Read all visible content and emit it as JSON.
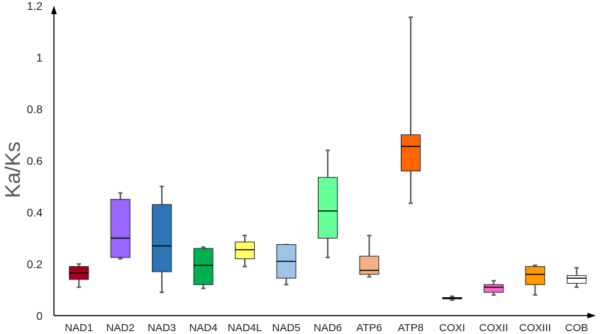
{
  "chart_data": {
    "type": "boxplot",
    "ylabel": "Ka/Ks",
    "ylim": [
      0,
      1.2
    ],
    "yticks": [
      0,
      0.2,
      0.4,
      0.6,
      0.8,
      1,
      1.2
    ],
    "ytick_labels": [
      "0",
      "0.2",
      "0.4",
      "0.6",
      "0.8",
      "1",
      "1.2"
    ],
    "grid": false,
    "categories": [
      "NAD1",
      "NAD2",
      "NAD3",
      "NAD4",
      "NAD4L",
      "NAD5",
      "NAD6",
      "ATP6",
      "ATP8",
      "COXI",
      "COXII",
      "COXIII",
      "COB"
    ],
    "boxes": [
      {
        "min": 0.11,
        "q1": 0.14,
        "median": 0.165,
        "q3": 0.19,
        "max": 0.2,
        "color": "#a50021"
      },
      {
        "min": 0.22,
        "q1": 0.225,
        "median": 0.3,
        "q3": 0.45,
        "max": 0.475,
        "color": "#9966ff"
      },
      {
        "min": 0.09,
        "q1": 0.17,
        "median": 0.27,
        "q3": 0.43,
        "max": 0.5,
        "color": "#2e75b6"
      },
      {
        "min": 0.105,
        "q1": 0.12,
        "median": 0.195,
        "q3": 0.26,
        "max": 0.265,
        "color": "#00b050"
      },
      {
        "min": 0.19,
        "q1": 0.22,
        "median": 0.255,
        "q3": 0.285,
        "max": 0.31,
        "color": "#ffff66"
      },
      {
        "min": 0.12,
        "q1": 0.145,
        "median": 0.21,
        "q3": 0.275,
        "max": 0.275,
        "color": "#9dc3e6"
      },
      {
        "min": 0.225,
        "q1": 0.3,
        "median": 0.405,
        "q3": 0.535,
        "max": 0.64,
        "color": "#66ff99"
      },
      {
        "min": 0.15,
        "q1": 0.16,
        "median": 0.175,
        "q3": 0.23,
        "max": 0.31,
        "color": "#f4b183"
      },
      {
        "min": 0.435,
        "q1": 0.56,
        "median": 0.655,
        "q3": 0.7,
        "max": 1.155,
        "color": "#ff6600"
      },
      {
        "min": 0.06,
        "q1": 0.065,
        "median": 0.068,
        "q3": 0.07,
        "max": 0.075,
        "color": "#1f4e79"
      },
      {
        "min": 0.08,
        "q1": 0.09,
        "median": 0.11,
        "q3": 0.12,
        "max": 0.135,
        "color": "#ff66cc"
      },
      {
        "min": 0.08,
        "q1": 0.12,
        "median": 0.16,
        "q3": 0.19,
        "max": 0.195,
        "color": "#ff9900"
      },
      {
        "min": 0.11,
        "q1": 0.125,
        "median": 0.145,
        "q3": 0.155,
        "max": 0.185,
        "color": "#ffffff"
      }
    ]
  }
}
